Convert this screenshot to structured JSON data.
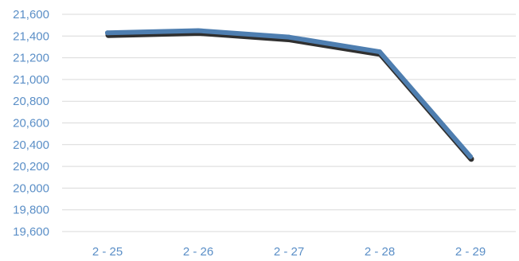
{
  "chart_data": {
    "type": "line",
    "title": "",
    "xlabel": "",
    "ylabel": "",
    "categories": [
      "2 - 25",
      "2 - 26",
      "2 - 27",
      "2 - 28",
      "2 - 29"
    ],
    "series": [
      {
        "values": [
          21430,
          21450,
          21390,
          21255,
          20290
        ],
        "color": "#4e7eb0"
      }
    ],
    "yticks": [
      "19,600",
      "19,800",
      "20,000",
      "20,200",
      "20,400",
      "20,600",
      "20,800",
      "21,000",
      "21,200",
      "21,400",
      "21,600"
    ],
    "ylim": [
      19600,
      21600
    ],
    "grid": true,
    "legend": "none",
    "tick_label_color": "#5b8fc7",
    "gridline_color": "#d9d9d9",
    "shadow_color": "#1a1a1a"
  }
}
